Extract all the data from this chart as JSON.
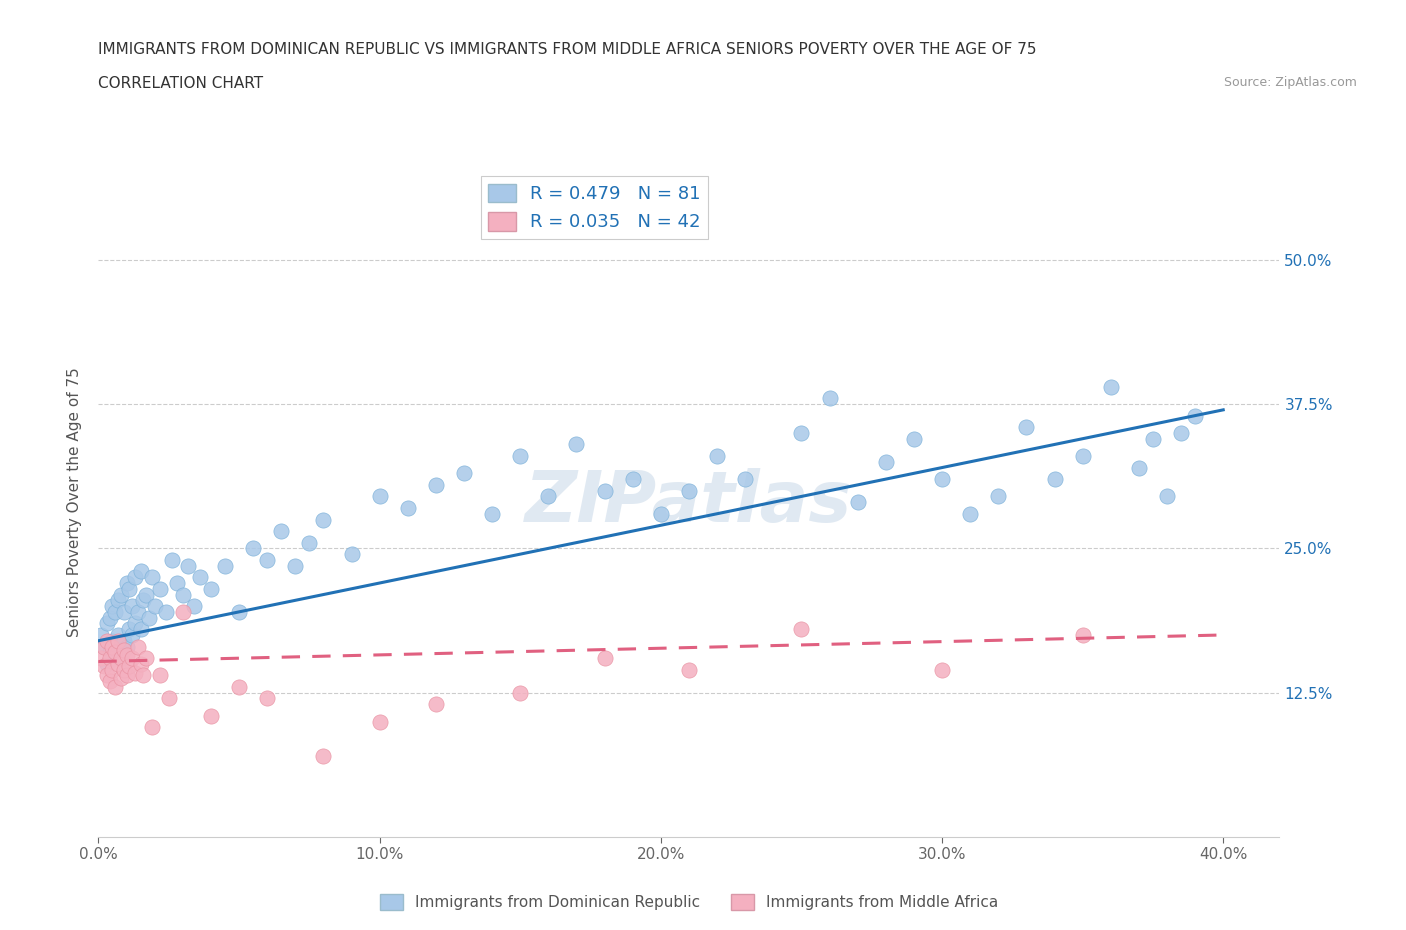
{
  "title_line1": "IMMIGRANTS FROM DOMINICAN REPUBLIC VS IMMIGRANTS FROM MIDDLE AFRICA SENIORS POVERTY OVER THE AGE OF 75",
  "title_line2": "CORRELATION CHART",
  "source_text": "Source: ZipAtlas.com",
  "ylabel": "Seniors Poverty Over the Age of 75",
  "xlim": [
    0.0,
    0.42
  ],
  "ylim": [
    0.0,
    0.58
  ],
  "ytick_labels": [
    "12.5%",
    "25.0%",
    "37.5%",
    "50.0%"
  ],
  "ytick_values": [
    0.125,
    0.25,
    0.375,
    0.5
  ],
  "xtick_labels": [
    "0.0%",
    "10.0%",
    "20.0%",
    "30.0%",
    "40.0%"
  ],
  "xtick_values": [
    0.0,
    0.1,
    0.2,
    0.3,
    0.4
  ],
  "blue_color": "#a8c8e8",
  "pink_color": "#f4b0c0",
  "blue_line_color": "#2171b5",
  "pink_line_color": "#e06080",
  "legend_blue_label": "R = 0.479   N = 81",
  "legend_pink_label": "R = 0.035   N = 42",
  "legend_blue_series": "Immigrants from Dominican Republic",
  "legend_pink_series": "Immigrants from Middle Africa",
  "watermark": "ZIPatlas",
  "blue_scatter_x": [
    0.001,
    0.002,
    0.003,
    0.003,
    0.004,
    0.004,
    0.005,
    0.005,
    0.006,
    0.006,
    0.007,
    0.007,
    0.008,
    0.008,
    0.009,
    0.009,
    0.01,
    0.01,
    0.011,
    0.011,
    0.012,
    0.012,
    0.013,
    0.013,
    0.014,
    0.015,
    0.015,
    0.016,
    0.017,
    0.018,
    0.019,
    0.02,
    0.022,
    0.024,
    0.026,
    0.028,
    0.03,
    0.032,
    0.034,
    0.036,
    0.04,
    0.045,
    0.05,
    0.055,
    0.06,
    0.065,
    0.07,
    0.075,
    0.08,
    0.09,
    0.1,
    0.11,
    0.12,
    0.13,
    0.14,
    0.15,
    0.16,
    0.17,
    0.18,
    0.19,
    0.2,
    0.21,
    0.22,
    0.23,
    0.25,
    0.26,
    0.27,
    0.28,
    0.29,
    0.3,
    0.31,
    0.32,
    0.33,
    0.34,
    0.35,
    0.36,
    0.37,
    0.375,
    0.38,
    0.385,
    0.39
  ],
  "blue_scatter_y": [
    0.175,
    0.165,
    0.15,
    0.185,
    0.16,
    0.19,
    0.17,
    0.2,
    0.155,
    0.195,
    0.175,
    0.205,
    0.16,
    0.21,
    0.17,
    0.195,
    0.165,
    0.22,
    0.18,
    0.215,
    0.175,
    0.2,
    0.185,
    0.225,
    0.195,
    0.18,
    0.23,
    0.205,
    0.21,
    0.19,
    0.225,
    0.2,
    0.215,
    0.195,
    0.24,
    0.22,
    0.21,
    0.235,
    0.2,
    0.225,
    0.215,
    0.235,
    0.195,
    0.25,
    0.24,
    0.265,
    0.235,
    0.255,
    0.275,
    0.245,
    0.295,
    0.285,
    0.305,
    0.315,
    0.28,
    0.33,
    0.295,
    0.34,
    0.3,
    0.31,
    0.28,
    0.3,
    0.33,
    0.31,
    0.35,
    0.38,
    0.29,
    0.325,
    0.345,
    0.31,
    0.28,
    0.295,
    0.355,
    0.31,
    0.33,
    0.39,
    0.32,
    0.345,
    0.295,
    0.35,
    0.365
  ],
  "pink_scatter_x": [
    0.001,
    0.002,
    0.002,
    0.003,
    0.003,
    0.004,
    0.004,
    0.005,
    0.005,
    0.006,
    0.006,
    0.007,
    0.007,
    0.008,
    0.008,
    0.009,
    0.009,
    0.01,
    0.01,
    0.011,
    0.012,
    0.013,
    0.014,
    0.015,
    0.016,
    0.017,
    0.019,
    0.022,
    0.025,
    0.03,
    0.04,
    0.05,
    0.06,
    0.08,
    0.1,
    0.12,
    0.15,
    0.18,
    0.21,
    0.25,
    0.3,
    0.35
  ],
  "pink_scatter_y": [
    0.155,
    0.148,
    0.165,
    0.14,
    0.17,
    0.135,
    0.155,
    0.145,
    0.165,
    0.13,
    0.16,
    0.15,
    0.17,
    0.138,
    0.155,
    0.145,
    0.162,
    0.14,
    0.158,
    0.148,
    0.155,
    0.142,
    0.165,
    0.15,
    0.14,
    0.155,
    0.095,
    0.14,
    0.12,
    0.195,
    0.105,
    0.13,
    0.12,
    0.07,
    0.1,
    0.115,
    0.125,
    0.155,
    0.145,
    0.18,
    0.145,
    0.175
  ],
  "grid_color": "#cccccc",
  "background_color": "#ffffff",
  "blue_line_start_y": 0.17,
  "blue_line_end_y": 0.37,
  "pink_line_start_y": 0.152,
  "pink_line_end_y": 0.175
}
